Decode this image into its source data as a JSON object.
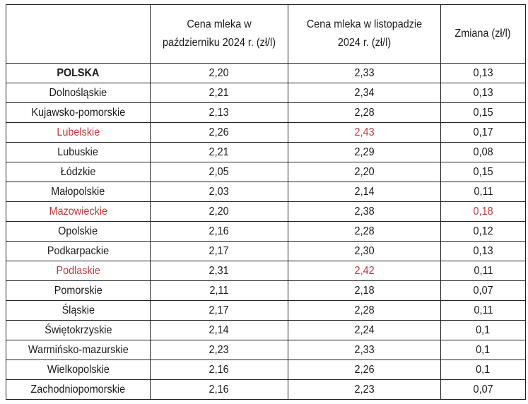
{
  "table": {
    "headers": [
      "",
      "Cena mleka w październiku 2024 r. (zł/l)",
      "Cena mleka w listopadzie 2024 r. (zł/l)",
      "Zmiana (zł/l)"
    ],
    "highlight_color": "#c0393b",
    "rows": [
      {
        "region": "POLSKA",
        "oct": "2,20",
        "nov": "2,33",
        "change": "0,13",
        "bold": true,
        "red": []
      },
      {
        "region": "Dolnośląskie",
        "oct": "2,21",
        "nov": "2,34",
        "change": "0,13",
        "red": []
      },
      {
        "region": "Kujawsko-pomorskie",
        "oct": "2,13",
        "nov": "2,28",
        "change": "0,15",
        "red": []
      },
      {
        "region": "Lubelskie",
        "oct": "2,26",
        "nov": "2,43",
        "change": "0,17",
        "red": [
          0,
          2
        ]
      },
      {
        "region": "Lubuskie",
        "oct": "2,21",
        "nov": "2,29",
        "change": "0,08",
        "red": []
      },
      {
        "region": "Łódzkie",
        "oct": "2,05",
        "nov": "2,20",
        "change": "0,15",
        "red": []
      },
      {
        "region": "Małopolskie",
        "oct": "2,03",
        "nov": "2,14",
        "change": "0,11",
        "red": []
      },
      {
        "region": "Mazowieckie",
        "oct": "2,20",
        "nov": "2,38",
        "change": "0,18",
        "red": [
          0,
          3
        ]
      },
      {
        "region": "Opolskie",
        "oct": "2,16",
        "nov": "2,28",
        "change": "0,12",
        "red": []
      },
      {
        "region": "Podkarpackie",
        "oct": "2,17",
        "nov": "2,30",
        "change": "0,13",
        "red": []
      },
      {
        "region": "Podlaskie",
        "oct": "2,31",
        "nov": "2,42",
        "change": "0,11",
        "red": [
          0,
          2
        ]
      },
      {
        "region": "Pomorskie",
        "oct": "2,11",
        "nov": "2,18",
        "change": "0,07",
        "red": []
      },
      {
        "region": "Śląskie",
        "oct": "2,17",
        "nov": "2,28",
        "change": "0,11",
        "red": []
      },
      {
        "region": "Świętokrzyskie",
        "oct": "2,14",
        "nov": "2,24",
        "change": "0,1",
        "red": []
      },
      {
        "region": "Warmińsko-mazurskie",
        "oct": "2,23",
        "nov": "2,33",
        "change": "0,1",
        "red": []
      },
      {
        "region": "Wielkopolskie",
        "oct": "2,16",
        "nov": "2,26",
        "change": "0,1",
        "red": []
      },
      {
        "region": "Zachodniopomorskie",
        "oct": "2,16",
        "nov": "2,23",
        "change": "0,07",
        "red": []
      }
    ]
  }
}
